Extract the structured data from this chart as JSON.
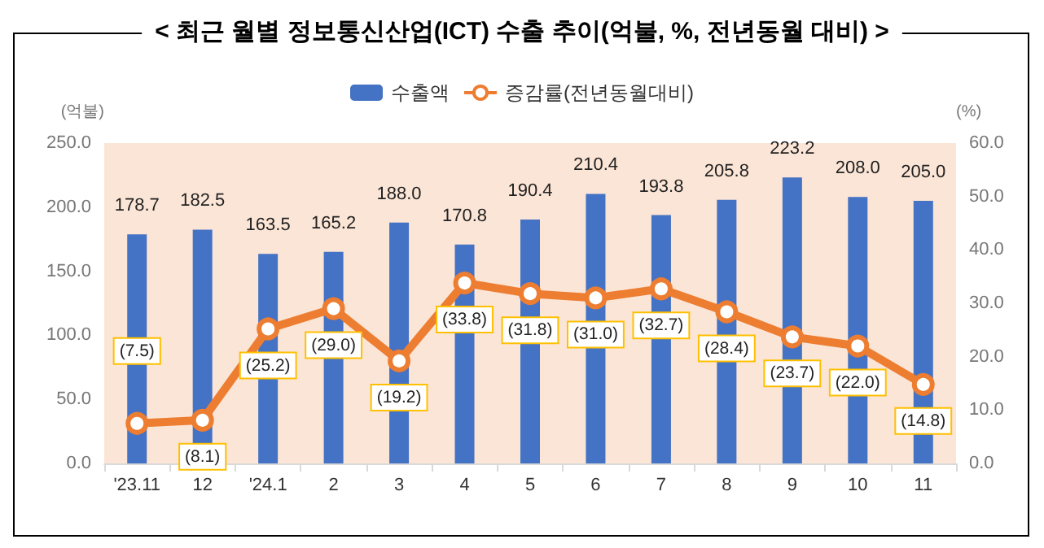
{
  "chart_data": {
    "type": "bar",
    "title": "< 최근 월별 정보통신산업(ICT) 수출 추이(억불, %, 전년동월 대비) >",
    "ylabel": "(억불)",
    "y2label": "(%)",
    "categories": [
      "'23.11",
      "12",
      "'24.1",
      "2",
      "3",
      "4",
      "5",
      "6",
      "7",
      "8",
      "9",
      "10",
      "11"
    ],
    "series": [
      {
        "name": "수출액",
        "color": "#4472c4",
        "values": [
          178.7,
          182.5,
          163.5,
          165.2,
          188.0,
          170.8,
          190.4,
          210.4,
          193.8,
          205.8,
          223.2,
          208.0,
          205.0
        ],
        "value_labels": [
          "178.7",
          "182.5",
          "163.5",
          "165.2",
          "188.0",
          "170.8",
          "190.4",
          "210.4",
          "193.8",
          "205.8",
          "223.2",
          "208.0",
          "205.0"
        ]
      },
      {
        "name": "증감률(전년동월대비)",
        "type": "line",
        "axis": "y2",
        "color": "#ed7d31",
        "marker": "circle",
        "values": [
          7.5,
          8.1,
          25.2,
          29.0,
          19.2,
          33.8,
          31.8,
          31.0,
          32.7,
          28.4,
          23.7,
          22.0,
          14.8
        ],
        "value_labels": [
          "(7.5)",
          "(8.1)",
          "(25.2)",
          "(29.0)",
          "(19.2)",
          "(33.8)",
          "(31.8)",
          "(31.0)",
          "(32.7)",
          "(28.4)",
          "(23.7)",
          "(22.0)",
          "(14.8)"
        ]
      }
    ],
    "ylim": [
      0,
      250
    ],
    "yticks": [
      {
        "value": 0,
        "label": "0.0"
      },
      {
        "value": 50,
        "label": "50.0"
      },
      {
        "value": 100,
        "label": "100.0"
      },
      {
        "value": 150,
        "label": "150.0"
      },
      {
        "value": 200,
        "label": "200.0"
      },
      {
        "value": 250,
        "label": "250.0"
      }
    ],
    "y2lim": [
      0,
      60
    ],
    "y2ticks": [
      {
        "value": 0,
        "label": "0.0"
      },
      {
        "value": 10,
        "label": "10.0"
      },
      {
        "value": 20,
        "label": "20.0"
      },
      {
        "value": 30,
        "label": "30.0"
      },
      {
        "value": 40,
        "label": "40.0"
      },
      {
        "value": 50,
        "label": "50.0"
      },
      {
        "value": 60,
        "label": "60.0"
      }
    ],
    "grid": false,
    "legend": "top"
  }
}
